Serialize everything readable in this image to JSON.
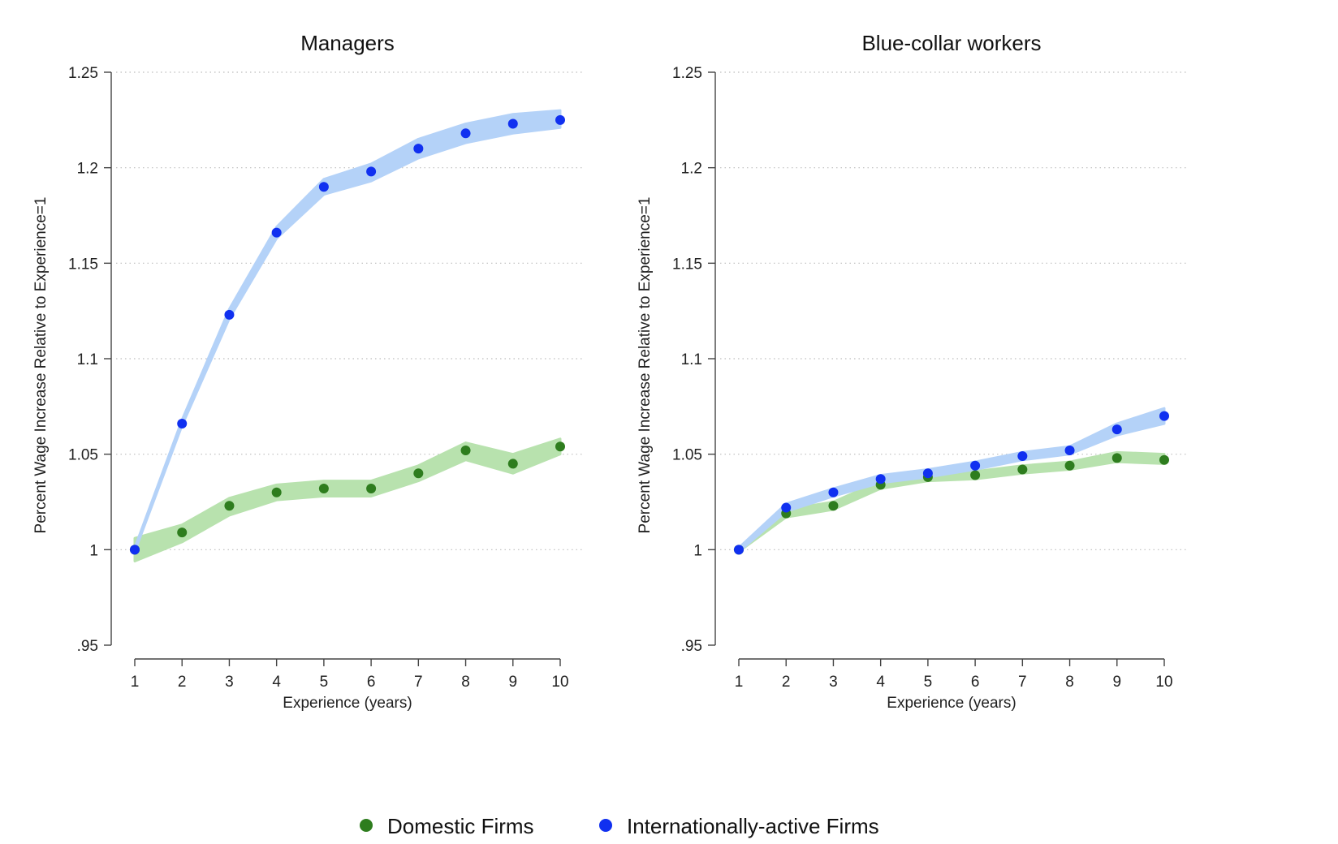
{
  "chart_data": [
    {
      "type": "line",
      "title": "Managers",
      "xlabel": "Experience (years)",
      "ylabel": "Percent Wage Increase Relative to Experience=1",
      "x": [
        1,
        2,
        3,
        4,
        5,
        6,
        7,
        8,
        9,
        10
      ],
      "xticks": [
        "1",
        "2",
        "3",
        "4",
        "5",
        "6",
        "7",
        "8",
        "9",
        "10"
      ],
      "yticks": [
        {
          "value": 0.95,
          "label": ".95"
        },
        {
          "value": 1.0,
          "label": "1"
        },
        {
          "value": 1.05,
          "label": "1.05"
        },
        {
          "value": 1.1,
          "label": "1.1"
        },
        {
          "value": 1.15,
          "label": "1.15"
        },
        {
          "value": 1.2,
          "label": "1.2"
        },
        {
          "value": 1.25,
          "label": "1.25"
        }
      ],
      "xlim": [
        0.5,
        10.5
      ],
      "ylim": [
        0.95,
        1.25
      ],
      "grid": true,
      "series": [
        {
          "name": "Domestic Firms",
          "color": "#2e7d1e",
          "band_color": "#b8e2ae",
          "values": [
            1.0,
            1.009,
            1.023,
            1.03,
            1.032,
            1.032,
            1.04,
            1.052,
            1.045,
            1.054
          ],
          "lower": [
            0.994,
            1.004,
            1.018,
            1.026,
            1.028,
            1.028,
            1.036,
            1.047,
            1.04,
            1.05
          ],
          "upper": [
            1.006,
            1.013,
            1.027,
            1.034,
            1.036,
            1.036,
            1.044,
            1.056,
            1.05,
            1.058
          ]
        },
        {
          "name": "Internationally-active Firms",
          "color": "#1030f0",
          "band_color": "#b4d2f8",
          "values": [
            1.0,
            1.066,
            1.123,
            1.166,
            1.19,
            1.198,
            1.21,
            1.218,
            1.223,
            1.225
          ],
          "lower": [
            0.999,
            1.065,
            1.121,
            1.163,
            1.186,
            1.193,
            1.205,
            1.213,
            1.218,
            1.221
          ],
          "upper": [
            1.001,
            1.068,
            1.126,
            1.169,
            1.194,
            1.202,
            1.215,
            1.223,
            1.228,
            1.23
          ]
        }
      ]
    },
    {
      "type": "line",
      "title": "Blue-collar workers",
      "xlabel": "Experience (years)",
      "ylabel": "Percent Wage Increase Relative to Experience=1",
      "x": [
        1,
        2,
        3,
        4,
        5,
        6,
        7,
        8,
        9,
        10
      ],
      "xticks": [
        "1",
        "2",
        "3",
        "4",
        "5",
        "6",
        "7",
        "8",
        "9",
        "10"
      ],
      "yticks": [
        {
          "value": 0.95,
          "label": ".95"
        },
        {
          "value": 1.0,
          "label": "1"
        },
        {
          "value": 1.05,
          "label": "1.05"
        },
        {
          "value": 1.1,
          "label": "1.1"
        },
        {
          "value": 1.15,
          "label": "1.15"
        },
        {
          "value": 1.2,
          "label": "1.2"
        },
        {
          "value": 1.25,
          "label": "1.25"
        }
      ],
      "xlim": [
        0.5,
        10.5
      ],
      "ylim": [
        0.95,
        1.25
      ],
      "grid": true,
      "series": [
        {
          "name": "Domestic Firms",
          "color": "#2e7d1e",
          "band_color": "#b8e2ae",
          "values": [
            1.0,
            1.019,
            1.023,
            1.034,
            1.038,
            1.039,
            1.042,
            1.044,
            1.048,
            1.047
          ],
          "lower": [
            0.999,
            1.017,
            1.021,
            1.032,
            1.036,
            1.037,
            1.04,
            1.042,
            1.046,
            1.045
          ],
          "upper": [
            1.001,
            1.021,
            1.025,
            1.036,
            1.04,
            1.041,
            1.044,
            1.046,
            1.051,
            1.05
          ]
        },
        {
          "name": "Internationally-active Firms",
          "color": "#1030f0",
          "band_color": "#b4d2f8",
          "values": [
            1.0,
            1.022,
            1.03,
            1.037,
            1.04,
            1.044,
            1.049,
            1.052,
            1.063,
            1.07
          ],
          "lower": [
            0.999,
            1.02,
            1.028,
            1.035,
            1.038,
            1.042,
            1.047,
            1.05,
            1.06,
            1.066
          ],
          "upper": [
            1.001,
            1.024,
            1.032,
            1.039,
            1.042,
            1.046,
            1.051,
            1.054,
            1.066,
            1.074
          ]
        }
      ]
    }
  ],
  "legend": {
    "position": "bottom-center",
    "items": [
      {
        "label": "Domestic Firms",
        "color": "#2e7d1e"
      },
      {
        "label": "Internationally-active Firms",
        "color": "#1030f0"
      }
    ]
  }
}
